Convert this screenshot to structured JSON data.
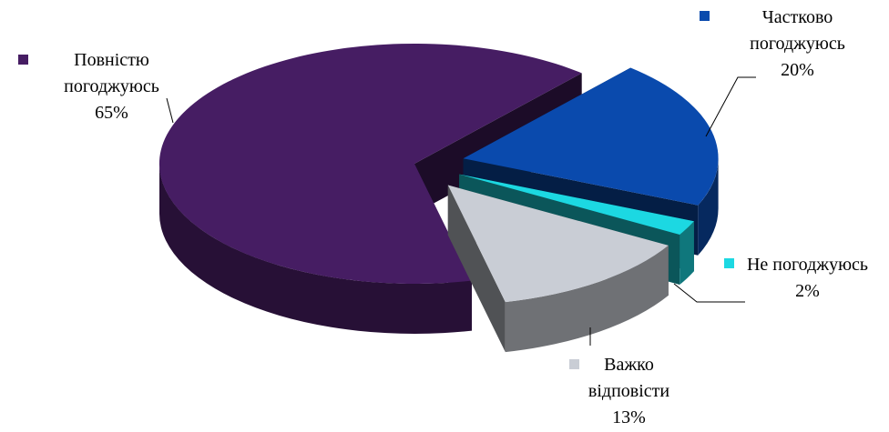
{
  "chart_data": {
    "type": "pie",
    "categories": [
      "Повністю погоджуюсь",
      "Частково погоджуюсь",
      "Не погоджуюсь",
      "Важко відповісти"
    ],
    "values": [
      65,
      20,
      2,
      13
    ],
    "value_labels": [
      "65%",
      "20%",
      "2%",
      "13%"
    ],
    "colors": [
      "#461d63",
      "#0a4aad",
      "#1cd8e2",
      "#c9cdd5"
    ]
  }
}
